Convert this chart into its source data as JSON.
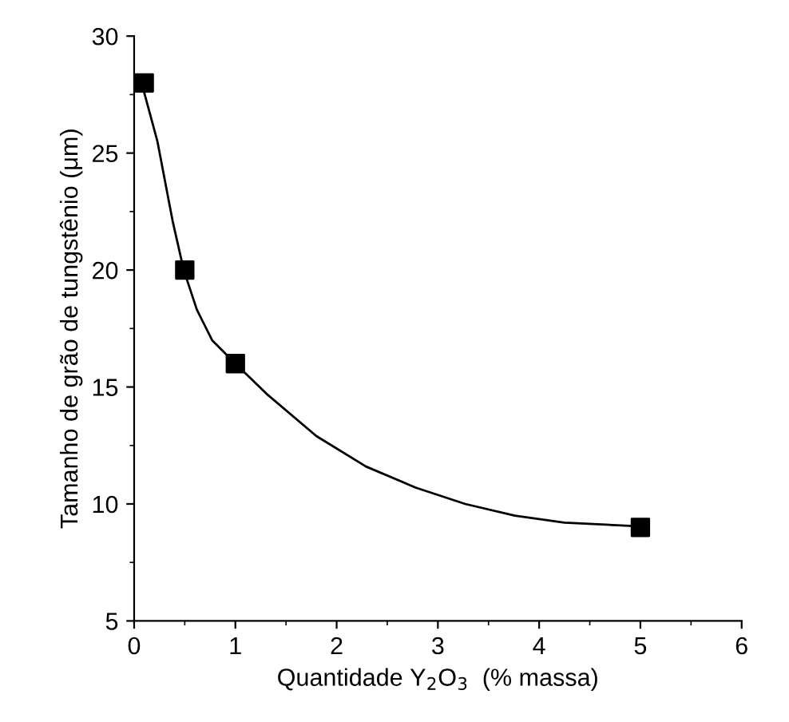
{
  "chart_data": {
    "type": "scatter",
    "xlabel": "Quantidade Y$_{2}$O$_{3}$  (% massa)",
    "ylabel": "Tamanho de grão de tungstênio (μm)",
    "xlim": [
      0,
      6
    ],
    "xticks": [
      0,
      1,
      2,
      3,
      4,
      5,
      6
    ],
    "ylim": [
      5,
      30
    ],
    "yticks": [
      5,
      10,
      15,
      20,
      25,
      30
    ],
    "grid": false,
    "legend": false,
    "series": [
      {
        "color": "#000000",
        "marker": "square",
        "x": [
          0.1,
          0.5,
          1,
          5
        ],
        "values": [
          28,
          20,
          16,
          9
        ]
      },
      {
        "type": "line",
        "color": "#000000",
        "marker": "none",
        "line_style": "solid",
        "x": [
          0.08,
          0.23,
          0.38,
          0.49,
          0.62,
          0.77,
          1,
          1.31,
          1.8,
          2.29,
          2.78,
          3.27,
          3.76,
          4.25,
          4.96
        ],
        "values": [
          27.9,
          25.5,
          22.1,
          20,
          18.3,
          17.0,
          16,
          14.7,
          12.9,
          11.6,
          10.7,
          10.0,
          9.5,
          9.2,
          9.05
        ]
      }
    ]
  }
}
